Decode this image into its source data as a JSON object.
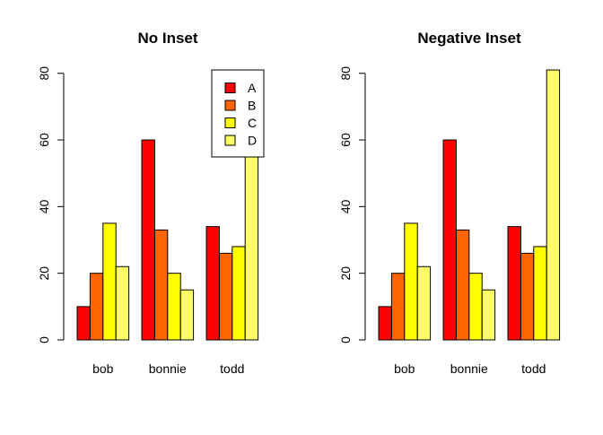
{
  "chart_data": [
    {
      "type": "bar",
      "title": "No Inset",
      "categories": [
        "bob",
        "bonnie",
        "todd"
      ],
      "series": [
        {
          "name": "A",
          "color": "#FF0000",
          "values": [
            10,
            60,
            34
          ]
        },
        {
          "name": "B",
          "color": "#FF6600",
          "values": [
            20,
            33,
            26
          ]
        },
        {
          "name": "C",
          "color": "#FFFF00",
          "values": [
            35,
            20,
            28
          ]
        },
        {
          "name": "D",
          "color": "#FFFF66",
          "values": [
            22,
            15,
            81
          ]
        }
      ],
      "yticks": [
        "0",
        "20",
        "40",
        "60",
        "80"
      ],
      "ylim": [
        0,
        81
      ],
      "legend": "top-right, overlapping plot"
    },
    {
      "type": "bar",
      "title": "Negative Inset",
      "categories": [
        "bob",
        "bonnie",
        "todd"
      ],
      "series": [
        {
          "name": "A",
          "color": "#FF0000",
          "values": [
            10,
            60,
            34
          ]
        },
        {
          "name": "B",
          "color": "#FF6600",
          "values": [
            20,
            33,
            26
          ]
        },
        {
          "name": "C",
          "color": "#FFFF00",
          "values": [
            35,
            20,
            28
          ]
        },
        {
          "name": "D",
          "color": "#FFFF66",
          "values": [
            22,
            15,
            81
          ]
        }
      ],
      "yticks": [
        "0",
        "20",
        "40",
        "60",
        "80"
      ],
      "ylim": [
        0,
        81
      ]
    }
  ]
}
